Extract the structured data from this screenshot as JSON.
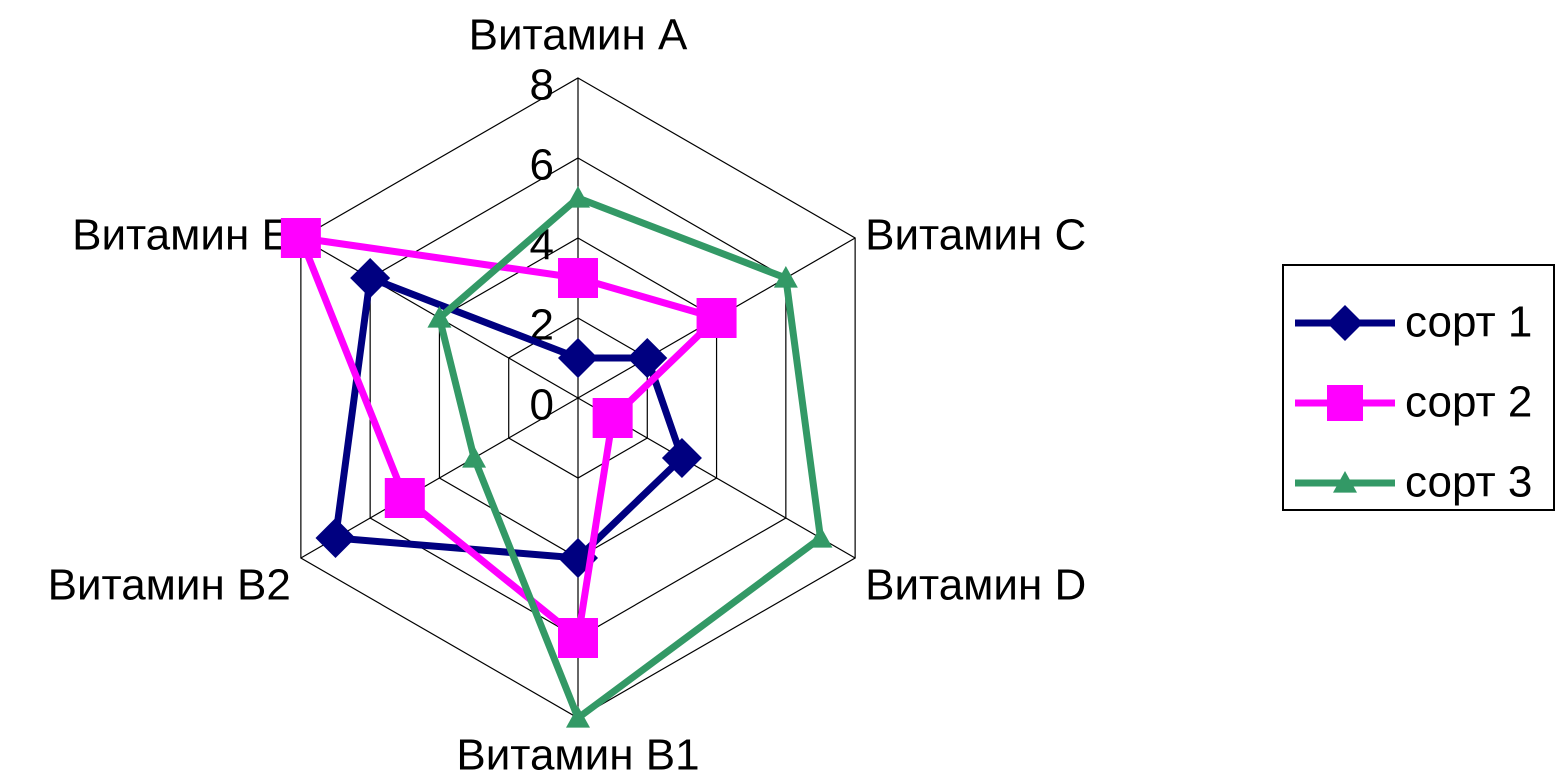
{
  "chart_data": {
    "type": "radar",
    "categories": [
      "Витамин A",
      "Витамин C",
      "Витамин D",
      "Витамин B1",
      "Витамин B2",
      "Витамин E"
    ],
    "series": [
      {
        "name": "сорт 1",
        "color": "#000080",
        "marker": "diamond",
        "values": [
          1,
          2,
          3,
          4,
          7,
          6
        ]
      },
      {
        "name": "сорт 2",
        "color": "#ff00ff",
        "marker": "square",
        "values": [
          3,
          4,
          1,
          6,
          5,
          8
        ]
      },
      {
        "name": "сорт 3",
        "color": "#339966",
        "marker": "triangle",
        "values": [
          5,
          6,
          7,
          8,
          3,
          4
        ]
      }
    ],
    "ylim": [
      0,
      8
    ],
    "yticks": [
      0,
      2,
      4,
      6,
      8
    ],
    "grid": true,
    "legend": "right"
  }
}
